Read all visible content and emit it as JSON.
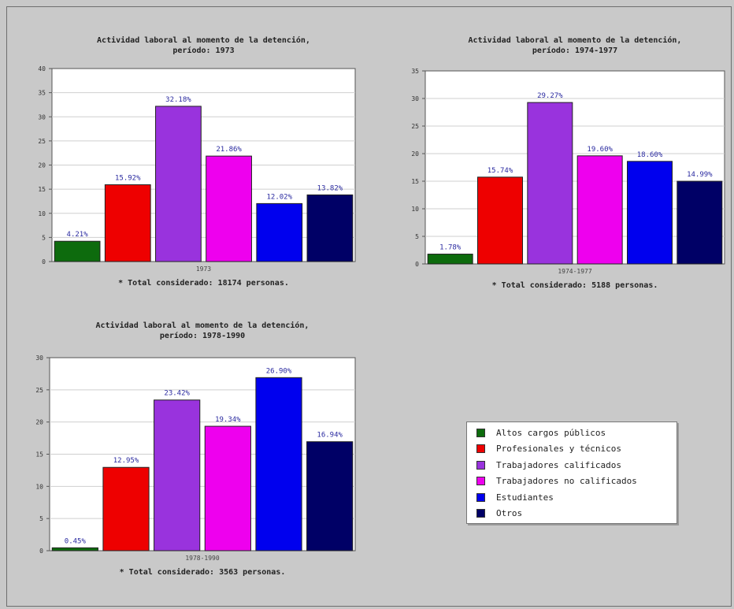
{
  "colors": {
    "category_colors": [
      "#0d6b0d",
      "#ee0000",
      "#9933dd",
      "#ee00ee",
      "#0000ee",
      "#000066"
    ],
    "label_color": "#2a2aa0",
    "background": "#c9c9c9"
  },
  "legend": {
    "items": [
      {
        "label": "Altos cargos públicos"
      },
      {
        "label": "Profesionales y técnicos"
      },
      {
        "label": "Trabajadores calificados"
      },
      {
        "label": "Trabajadores no calificados"
      },
      {
        "label": "Estudiantes"
      },
      {
        "label": "Otros"
      }
    ]
  },
  "chart_data": [
    {
      "type": "bar",
      "title": "Actividad laboral al momento de la detención,",
      "subtitle": "período: 1973",
      "categories": [
        "Altos cargos públicos",
        "Profesionales y técnicos",
        "Trabajadores calificados",
        "Trabajadores no calificados",
        "Estudiantes",
        "Otros"
      ],
      "values": [
        4.21,
        15.92,
        32.18,
        21.86,
        12.02,
        13.82
      ],
      "value_labels": [
        "4.21%",
        "15.92%",
        "32.18%",
        "21.86%",
        "12.02%",
        "13.82%"
      ],
      "xlabel": "1973",
      "ylim": [
        0,
        40
      ],
      "yticks": [
        0,
        5,
        10,
        15,
        20,
        25,
        30,
        35,
        40
      ],
      "grid": true,
      "note": "* Total considerado: 18174 personas."
    },
    {
      "type": "bar",
      "title": "Actividad laboral al momento de la detención,",
      "subtitle": "período: 1974-1977",
      "categories": [
        "Altos cargos públicos",
        "Profesionales y técnicos",
        "Trabajadores calificados",
        "Trabajadores no calificados",
        "Estudiantes",
        "Otros"
      ],
      "values": [
        1.78,
        15.74,
        29.27,
        19.6,
        18.6,
        14.99
      ],
      "value_labels": [
        "1.78%",
        "15.74%",
        "29.27%",
        "19.60%",
        "18.60%",
        "14.99%"
      ],
      "xlabel": "1974-1977",
      "ylim": [
        0,
        35
      ],
      "yticks": [
        0,
        5,
        10,
        15,
        20,
        25,
        30,
        35
      ],
      "grid": true,
      "note": "* Total considerado: 5188 personas."
    },
    {
      "type": "bar",
      "title": "Actividad laboral al momento de la detención,",
      "subtitle": "período: 1978-1990",
      "categories": [
        "Altos cargos públicos",
        "Profesionales y técnicos",
        "Trabajadores calificados",
        "Trabajadores no calificados",
        "Estudiantes",
        "Otros"
      ],
      "values": [
        0.45,
        12.95,
        23.42,
        19.34,
        26.9,
        16.94
      ],
      "value_labels": [
        "0.45%",
        "12.95%",
        "23.42%",
        "19.34%",
        "26.90%",
        "16.94%"
      ],
      "xlabel": "1978-1990",
      "ylim": [
        0,
        30
      ],
      "yticks": [
        0,
        5,
        10,
        15,
        20,
        25,
        30
      ],
      "grid": true,
      "note": "* Total considerado: 3563 personas."
    }
  ]
}
